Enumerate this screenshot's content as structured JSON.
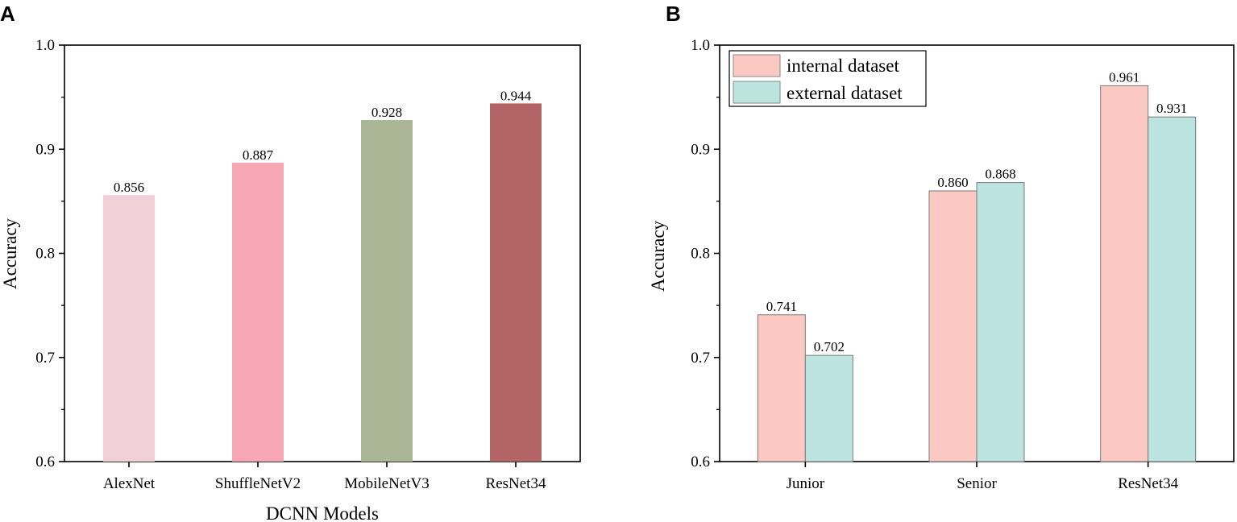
{
  "chart_data": [
    {
      "panel": "A",
      "type": "bar",
      "title": "",
      "xlabel": "DCNN Models",
      "ylabel": "Accuracy",
      "ylim": [
        0.6,
        1.0
      ],
      "yticks": [
        "0.6",
        "0.7",
        "0.8",
        "0.9",
        "1.0"
      ],
      "categories": [
        "AlexNet",
        "ShuffleNetV2",
        "MobileNetV3",
        "ResNet34"
      ],
      "values": [
        0.856,
        0.887,
        0.928,
        0.944
      ],
      "value_labels": [
        "0.856",
        "0.887",
        "0.928",
        "0.944"
      ],
      "colors": [
        "#f2d0d8",
        "#f7a6b4",
        "#aab596",
        "#b36465"
      ]
    },
    {
      "panel": "B",
      "type": "bar",
      "title": "",
      "xlabel": "",
      "ylabel": "Accuracy",
      "ylim": [
        0.6,
        1.0
      ],
      "yticks": [
        "0.6",
        "0.7",
        "0.8",
        "0.9",
        "1.0"
      ],
      "categories": [
        "Junior",
        "Senior",
        "ResNet34"
      ],
      "legend_position": "top-left",
      "series": [
        {
          "name": "internal dataset",
          "color": "#fcc8c2",
          "values": [
            0.741,
            0.86,
            0.961
          ],
          "value_labels": [
            "0.741",
            "0.860",
            "0.961"
          ]
        },
        {
          "name": "external dataset",
          "color": "#bbe3e0",
          "values": [
            0.702,
            0.868,
            0.931
          ],
          "value_labels": [
            "0.702",
            "0.868",
            "0.931"
          ]
        }
      ]
    }
  ]
}
